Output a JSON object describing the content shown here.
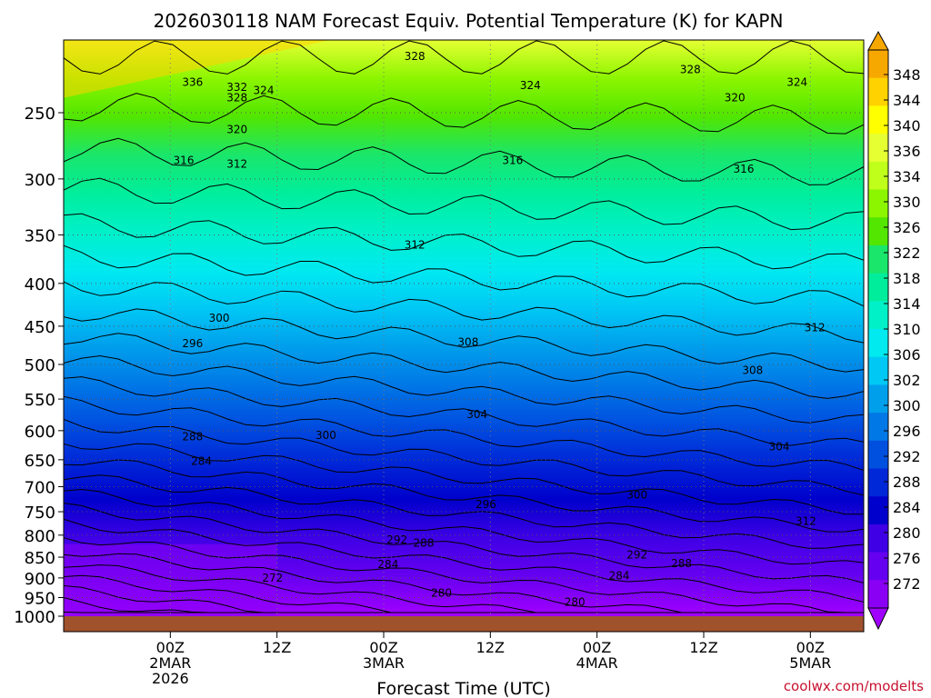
{
  "chart_data": {
    "type": "heatmap",
    "title": "2026030118 NAM Forecast Equiv. Potential Temperature (K) for KAPN",
    "xlabel": "Forecast Time (UTC)",
    "ylabel": "",
    "credit": "coolwx.com/modelts",
    "y_axis": {
      "range": [
        1000,
        200
      ],
      "ticks": [
        250,
        300,
        350,
        400,
        450,
        500,
        550,
        600,
        650,
        700,
        750,
        800,
        850,
        900,
        950,
        1000
      ]
    },
    "x_axis": {
      "range_hours": [
        -6,
        84
      ],
      "ticks": [
        {
          "hour": 6,
          "l1": "00Z",
          "l2": "2MAR",
          "l3": "2026"
        },
        {
          "hour": 18,
          "l1": "12Z",
          "l2": "",
          "l3": ""
        },
        {
          "hour": 30,
          "l1": "00Z",
          "l2": "3MAR",
          "l3": ""
        },
        {
          "hour": 42,
          "l1": "12Z",
          "l2": "",
          "l3": ""
        },
        {
          "hour": 54,
          "l1": "00Z",
          "l2": "4MAR",
          "l3": ""
        },
        {
          "hour": 66,
          "l1": "12Z",
          "l2": "",
          "l3": ""
        },
        {
          "hour": 78,
          "l1": "00Z",
          "l2": "5MAR",
          "l3": ""
        }
      ]
    },
    "colorbar": {
      "labels": [
        348,
        344,
        340,
        336,
        334,
        330,
        326,
        322,
        318,
        314,
        310,
        306,
        302,
        300,
        296,
        292,
        288,
        284,
        280,
        276,
        272
      ],
      "colors": [
        "#f7a800",
        "#ffd200",
        "#ffff00",
        "#e6ff33",
        "#bfff1a",
        "#8cf500",
        "#52e600",
        "#1ae66b",
        "#00ee9c",
        "#00f0c8",
        "#00eaf0",
        "#00c8f5",
        "#009fec",
        "#0078e6",
        "#0050e0",
        "#0028d8",
        "#0000cc",
        "#3f00e6",
        "#6600f0",
        "#8a00f5",
        "#a000ff"
      ]
    },
    "surface_pressure": 1000,
    "contour_labels": [
      {
        "v": "328",
        "h": 33.5,
        "p": 214
      },
      {
        "v": "328",
        "h": 64.5,
        "p": 222
      },
      {
        "v": "336",
        "h": 8.5,
        "p": 230
      },
      {
        "v": "332",
        "h": 13.5,
        "p": 233
      },
      {
        "v": "328",
        "h": 13.5,
        "p": 240
      },
      {
        "v": "324",
        "h": 16.5,
        "p": 235
      },
      {
        "v": "324",
        "h": 46.5,
        "p": 232
      },
      {
        "v": "324",
        "h": 76.5,
        "p": 230
      },
      {
        "v": "320",
        "h": 13.5,
        "p": 262
      },
      {
        "v": "320",
        "h": 69.5,
        "p": 240
      },
      {
        "v": "316",
        "h": 7.5,
        "p": 285
      },
      {
        "v": "312",
        "h": 13.5,
        "p": 288
      },
      {
        "v": "316",
        "h": 44.5,
        "p": 285
      },
      {
        "v": "316",
        "h": 70.5,
        "p": 292
      },
      {
        "v": "312",
        "h": 33.5,
        "p": 360
      },
      {
        "v": "300",
        "h": 11.5,
        "p": 440
      },
      {
        "v": "296",
        "h": 8.5,
        "p": 472
      },
      {
        "v": "308",
        "h": 39.5,
        "p": 470
      },
      {
        "v": "312",
        "h": 78.5,
        "p": 452
      },
      {
        "v": "308",
        "h": 71.5,
        "p": 508
      },
      {
        "v": "304",
        "h": 40.5,
        "p": 574
      },
      {
        "v": "300",
        "h": 23.5,
        "p": 608
      },
      {
        "v": "288",
        "h": 8.5,
        "p": 610
      },
      {
        "v": "304",
        "h": 74.5,
        "p": 627
      },
      {
        "v": "284",
        "h": 9.5,
        "p": 653
      },
      {
        "v": "300",
        "h": 58.5,
        "p": 716
      },
      {
        "v": "296",
        "h": 41.5,
        "p": 735
      },
      {
        "v": "312",
        "h": 77.5,
        "p": 770
      },
      {
        "v": "292",
        "h": 31.5,
        "p": 810
      },
      {
        "v": "288",
        "h": 34.5,
        "p": 818
      },
      {
        "v": "292",
        "h": 58.5,
        "p": 845
      },
      {
        "v": "288",
        "h": 63.5,
        "p": 865
      },
      {
        "v": "284",
        "h": 30.5,
        "p": 867
      },
      {
        "v": "284",
        "h": 56.5,
        "p": 895
      },
      {
        "v": "272",
        "h": 17.5,
        "p": 900
      },
      {
        "v": "280",
        "h": 36.5,
        "p": 938
      },
      {
        "v": "280",
        "h": 51.5,
        "p": 962
      }
    ]
  }
}
